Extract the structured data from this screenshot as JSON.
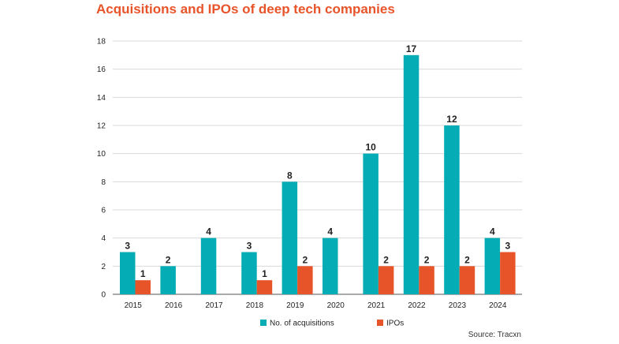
{
  "title": "Acquisitions and IPOs of deep tech companies",
  "source": "Source: Tracxn",
  "colors": {
    "acquisitions": "#04adb5",
    "ipos": "#e8542a",
    "title": "#e8542a",
    "grid": "#d9d9d9"
  },
  "chart_data": {
    "type": "bar",
    "categories": [
      "2015",
      "2016",
      "2017",
      "2018",
      "2019",
      "2020",
      "2021",
      "2022",
      "2023",
      "2024"
    ],
    "series": [
      {
        "name": "No. of acquisitions",
        "values": [
          3,
          2,
          4,
          3,
          8,
          4,
          10,
          17,
          12,
          4
        ]
      },
      {
        "name": "IPOs",
        "values": [
          1,
          null,
          null,
          1,
          2,
          null,
          2,
          2,
          2,
          3
        ]
      }
    ],
    "yticks": [
      "0",
      "2",
      "4",
      "6",
      "8",
      "10",
      "12",
      "14",
      "16",
      "18"
    ],
    "ylim": [
      0,
      18
    ],
    "grid": true,
    "legend_position": "bottom-center"
  }
}
